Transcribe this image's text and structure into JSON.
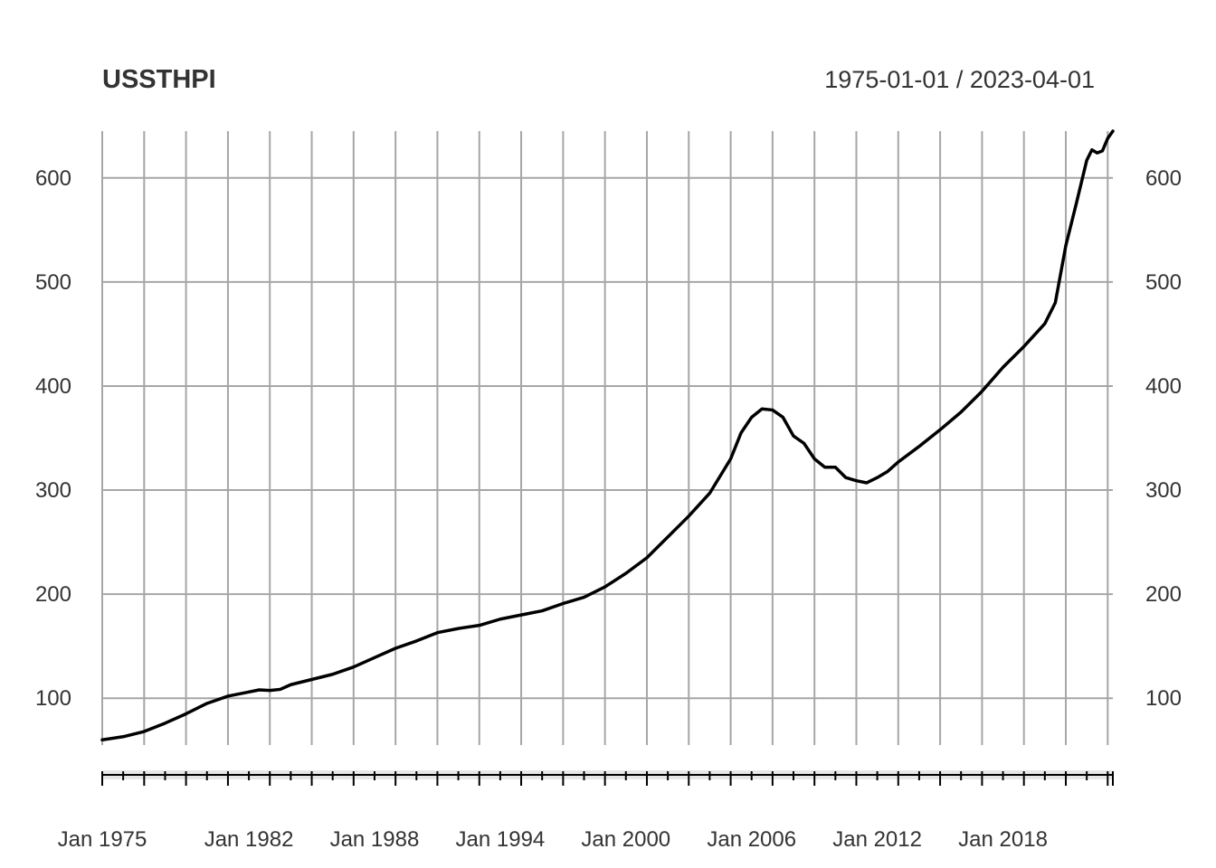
{
  "chart_data": {
    "type": "line",
    "title": "USSTHPI",
    "date_range": "1975-01-01 / 2023-04-01",
    "xlabel": "",
    "ylabel": "",
    "x_range": [
      "1975-01-01",
      "2023-04-01"
    ],
    "ylim": [
      55,
      645
    ],
    "y_ticks": [
      100,
      200,
      300,
      400,
      500,
      600
    ],
    "x_tick_labels": [
      "Jan 1975",
      "Jan 1982",
      "Jan 1988",
      "Jan 1994",
      "Jan 2000",
      "Jan 2006",
      "Jan 2012",
      "Jan 2018"
    ],
    "x_tick_dates": [
      "1975-01-01",
      "1982-01-01",
      "1988-01-01",
      "1994-01-01",
      "2000-01-01",
      "2006-01-01",
      "2012-01-01",
      "2018-01-01"
    ],
    "x_gridline_dates": [
      "1975-01-01",
      "1977-01-01",
      "1979-01-01",
      "1981-01-01",
      "1983-01-01",
      "1985-01-01",
      "1987-01-01",
      "1989-01-01",
      "1991-01-01",
      "1993-01-01",
      "1995-01-01",
      "1997-01-01",
      "1999-01-01",
      "2001-01-01",
      "2003-01-01",
      "2005-01-01",
      "2007-01-01",
      "2009-01-01",
      "2011-01-01",
      "2013-01-01",
      "2015-01-01",
      "2017-01-01",
      "2019-01-01",
      "2021-01-01",
      "2023-01-01"
    ],
    "grid": true,
    "series": [
      {
        "color": "#000000",
        "points": [
          [
            "1975-01-01",
            60.0
          ],
          [
            "1976-01-01",
            63.0
          ],
          [
            "1977-01-01",
            68.0
          ],
          [
            "1978-01-01",
            76.0
          ],
          [
            "1979-01-01",
            85.0
          ],
          [
            "1980-01-01",
            95.0
          ],
          [
            "1981-01-01",
            102.0
          ],
          [
            "1982-01-01",
            106.0
          ],
          [
            "1982-07-01",
            108.0
          ],
          [
            "1983-01-01",
            107.5
          ],
          [
            "1983-07-01",
            108.5
          ],
          [
            "1984-01-01",
            113.0
          ],
          [
            "1985-01-01",
            118.0
          ],
          [
            "1986-01-01",
            123.0
          ],
          [
            "1987-01-01",
            130.0
          ],
          [
            "1988-01-01",
            139.0
          ],
          [
            "1989-01-01",
            148.0
          ],
          [
            "1990-01-01",
            155.0
          ],
          [
            "1991-01-01",
            163.0
          ],
          [
            "1992-01-01",
            167.0
          ],
          [
            "1993-01-01",
            170.0
          ],
          [
            "1994-01-01",
            176.0
          ],
          [
            "1995-01-01",
            180.0
          ],
          [
            "1996-01-01",
            184.0
          ],
          [
            "1997-01-01",
            191.0
          ],
          [
            "1998-01-01",
            197.0
          ],
          [
            "1999-01-01",
            207.0
          ],
          [
            "2000-01-01",
            220.0
          ],
          [
            "2001-01-01",
            235.0
          ],
          [
            "2002-01-01",
            255.0
          ],
          [
            "2003-01-01",
            275.0
          ],
          [
            "2004-01-01",
            297.0
          ],
          [
            "2005-01-01",
            330.0
          ],
          [
            "2005-07-01",
            355.0
          ],
          [
            "2006-01-01",
            370.0
          ],
          [
            "2006-07-01",
            378.0
          ],
          [
            "2007-01-01",
            377.0
          ],
          [
            "2007-07-01",
            370.0
          ],
          [
            "2008-01-01",
            352.0
          ],
          [
            "2008-07-01",
            345.0
          ],
          [
            "2009-01-01",
            330.0
          ],
          [
            "2009-07-01",
            322.0
          ],
          [
            "2010-01-01",
            322.0
          ],
          [
            "2010-07-01",
            312.0
          ],
          [
            "2011-01-01",
            309.0
          ],
          [
            "2011-07-01",
            307.0
          ],
          [
            "2012-01-01",
            312.0
          ],
          [
            "2012-07-01",
            318.0
          ],
          [
            "2013-01-01",
            327.0
          ],
          [
            "2014-01-01",
            342.0
          ],
          [
            "2015-01-01",
            358.0
          ],
          [
            "2016-01-01",
            375.0
          ],
          [
            "2017-01-01",
            395.0
          ],
          [
            "2018-01-01",
            418.0
          ],
          [
            "2019-01-01",
            438.0
          ],
          [
            "2020-01-01",
            460.0
          ],
          [
            "2020-07-01",
            480.0
          ],
          [
            "2021-01-01",
            535.0
          ],
          [
            "2021-07-01",
            575.0
          ],
          [
            "2022-01-01",
            617.0
          ],
          [
            "2022-04-01",
            627.0
          ],
          [
            "2022-07-01",
            624.0
          ],
          [
            "2022-10-01",
            626.0
          ],
          [
            "2023-01-01",
            638.0
          ],
          [
            "2023-04-01",
            645.0
          ]
        ]
      }
    ]
  }
}
